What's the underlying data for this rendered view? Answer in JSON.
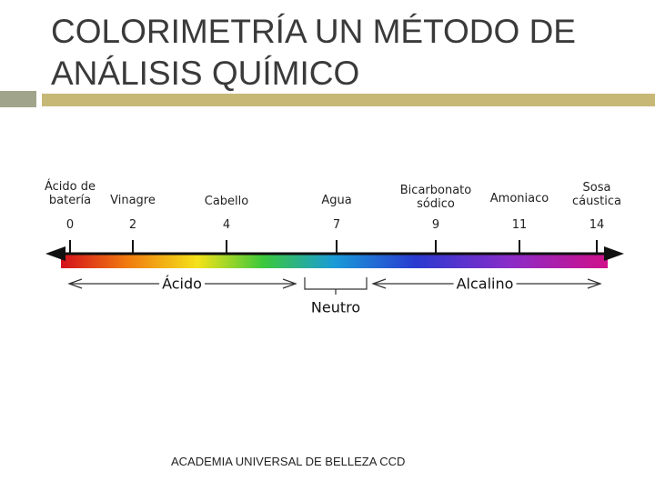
{
  "title": "COLORIMETRÍA UN MÉTODO DE ANÁLISIS QUÍMICO",
  "scale": {
    "points": [
      {
        "label": "Ácido de batería",
        "value": 0
      },
      {
        "label": "Vinagre",
        "value": 2
      },
      {
        "label": "Cabello",
        "value": 4
      },
      {
        "label": "Agua",
        "value": 7
      },
      {
        "label": "Bicarbonato sódico",
        "value": 9
      },
      {
        "label": "Amoniaco",
        "value": 11
      },
      {
        "label": "Sosa cáustica",
        "value": 14
      }
    ],
    "ranges": {
      "acid": "Ácido",
      "neutral": "Neutro",
      "alkaline": "Alcalino"
    }
  },
  "footer": "ACADEMIA UNIVERSAL DE BELLEZA CCD"
}
